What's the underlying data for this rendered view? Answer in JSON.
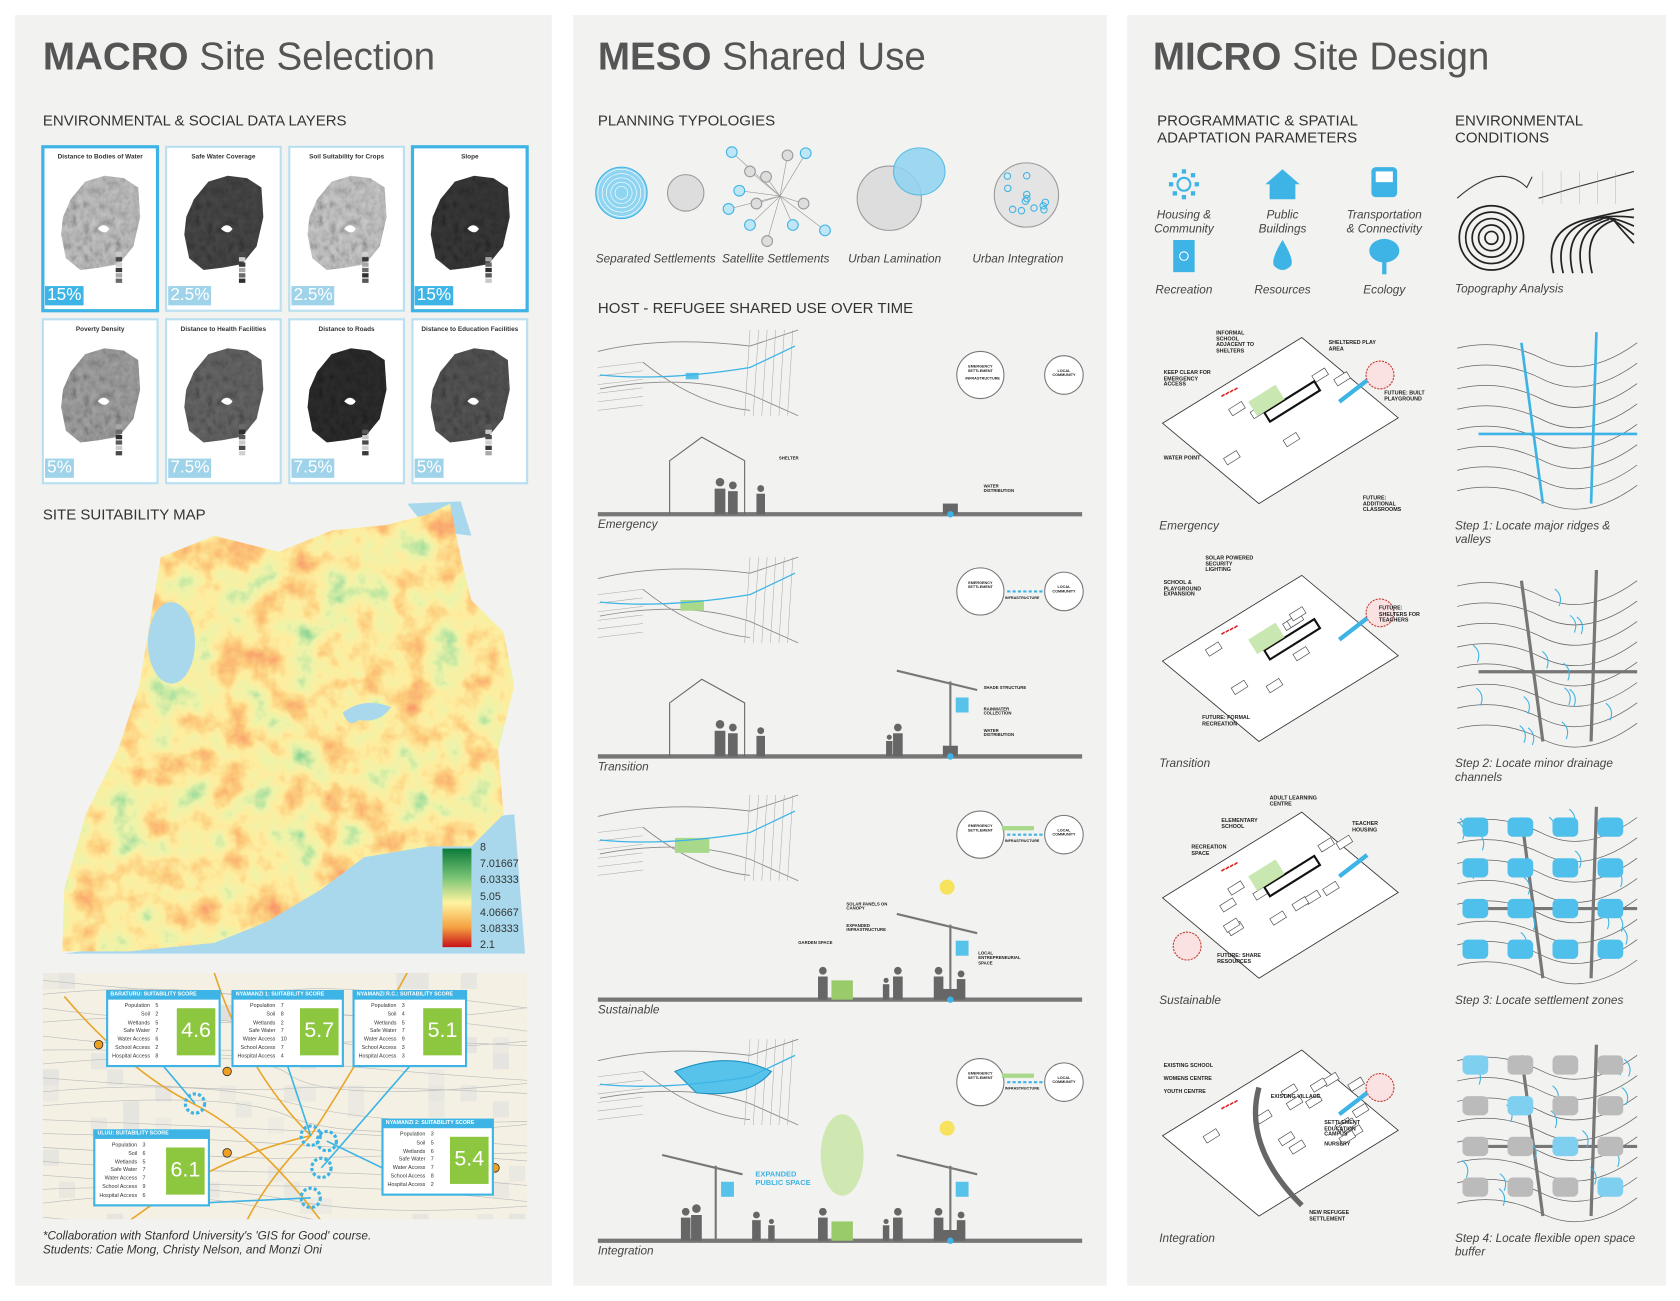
{
  "macro": {
    "title_bold": "MACRO",
    "title_rest": "Site Selection",
    "layers_heading": "ENVIRONMENTAL & SOCIAL DATA LAYERS",
    "layers": [
      {
        "title": "Distance to Bodies of Water",
        "weight": "15%",
        "highlight": true
      },
      {
        "title": "Safe Water Coverage",
        "weight": "2.5%",
        "highlight": false
      },
      {
        "title": "Soil Suitability for Crops",
        "weight": "2.5%",
        "highlight": false
      },
      {
        "title": "Slope",
        "weight": "15%",
        "highlight": true
      },
      {
        "title": "Poverty Density",
        "weight": "5%",
        "highlight": false
      },
      {
        "title": "Distance to Health Facilities",
        "weight": "7.5%",
        "highlight": false
      },
      {
        "title": "Distance to Roads",
        "weight": "7.5%",
        "highlight": false
      },
      {
        "title": "Distance to Education Facilities",
        "weight": "5%",
        "highlight": false
      }
    ],
    "suitability_heading": "SITE SUITABILITY MAP",
    "legend": [
      8,
      7.01667,
      6.03333,
      5.05,
      4.06667,
      3.08333,
      2.1
    ],
    "factors": [
      "Population",
      "Soil",
      "Wetlands",
      "Safe Water",
      "Water Access",
      "School Access",
      "Hospital Access"
    ],
    "sites": [
      {
        "name": "BARATURU: SUITABILITY SCORE",
        "scores": [
          5,
          2,
          5,
          7,
          6,
          2,
          8
        ],
        "score": 4.6
      },
      {
        "name": "NYAMANZI 1: SUITABILITY SCORE",
        "scores": [
          7,
          8,
          2,
          7,
          10,
          7,
          4
        ],
        "score": 5.7
      },
      {
        "name": "NYAMANZI R.C.: SUITABILITY SCORE",
        "scores": [
          3,
          4,
          5,
          7,
          9,
          3,
          3
        ],
        "score": 5.1
      },
      {
        "name": "ULUU: SUITABILITY SCORE",
        "scores": [
          3,
          6,
          5,
          7,
          7,
          9,
          6
        ],
        "score": 6.1
      },
      {
        "name": "NYAMANZI 2: SUITABILITY SCORE",
        "scores": [
          3,
          5,
          6,
          7,
          7,
          8,
          2
        ],
        "score": 5.4
      }
    ],
    "footnote": [
      "*Collaboration with Stanford University's 'GIS for Good' course.",
      "Students: Catie Mong, Christy Nelson, and Monzi Oni"
    ]
  },
  "meso": {
    "title_bold": "MESO",
    "title_rest": "Shared Use",
    "typologies_heading": "PLANNING TYPOLOGIES",
    "typologies": [
      "Separated Settlements",
      "Satellite Settlements",
      "Urban Lamination",
      "Urban Integration"
    ],
    "timeline_heading": "HOST - REFUGEE SHARED USE OVER TIME",
    "phases": [
      {
        "name": "Emergency",
        "circle_labels": [
          "EMERGENCY SETTLEMENT",
          "INFRASTRUCTURE",
          "LOCAL COMMUNITY"
        ],
        "labels": [
          "SHELTER",
          "WATER DISTRIBUTION"
        ]
      },
      {
        "name": "Transition",
        "circle_labels": [
          "EMERGENCY SETTLEMENT",
          "INFRASTRUCTURE",
          "LOCAL COMMUNITY"
        ],
        "labels": [
          "SHADE STRUCTURE",
          "RAINWATER COLLECTION",
          "WATER DISTRIBUTION"
        ]
      },
      {
        "name": "Sustainable",
        "circle_labels": [
          "EMERGENCY SETTLEMENT",
          "INFRASTRUCTURE",
          "LOCAL COMMUNITY"
        ],
        "labels": [
          "SOLAR PANELS ON CANOPY",
          "EXPANDED INFRASTRUCTURE",
          "GARDEN SPACE",
          "LOCAL ENTREPRENEURIAL SPACE"
        ]
      },
      {
        "name": "Integration",
        "circle_labels": [
          "EMERGENCY SETTLEMENT",
          "INFRASTRUCTURE",
          "LOCAL COMMUNITY"
        ],
        "labels": [
          "EXPANDED PUBLIC SPACE"
        ]
      }
    ]
  },
  "micro": {
    "title_bold": "MICRO",
    "title_rest": "Site Design",
    "parameters_heading": "PROGRAMMATIC & SPATIAL ADAPTATION PARAMETERS",
    "conditions_heading": "ENVIRONMENTAL CONDITIONS",
    "parameters": [
      "Housing & Community",
      "Public Buildings",
      "Transportation & Connectivity",
      "Recreation",
      "Resources",
      "Ecology"
    ],
    "topography": "Topography Analysis",
    "phases": [
      {
        "name": "Emergency",
        "step": "Step 1: Locate major ridges & valleys",
        "labels": [
          "INFORMAL SCHOOL ADJACENT TO SHELTERS",
          "SHELTERED PLAY AREA",
          "KEEP CLEAR FOR EMERGENCY ACCESS",
          "FUTURE: BUILT PLAYGROUND",
          "WATER POINT",
          "FUTURE: ADDITIONAL CLASSROOMS"
        ]
      },
      {
        "name": "Transition",
        "step": "Step 2: Locate minor drainage channels",
        "labels": [
          "SOLAR POWERED SECURITY LIGHTING",
          "SCHOOL & PLAYGROUND EXPANSION",
          "FUTURE: SHELTERS FOR TEACHERS",
          "FUTURE: FORMAL RECREATION"
        ]
      },
      {
        "name": "Sustainable",
        "step": "Step 3: Locate settlement zones",
        "labels": [
          "ADULT LEARNING CENTRE",
          "ELEMENTARY SCHOOL",
          "TEACHER HOUSING",
          "RECREATION SPACE",
          "FUTURE: SHARE RESOURCES"
        ]
      },
      {
        "name": "Integration",
        "step": "Step 4: Locate flexible open space buffer",
        "labels": [
          "EXISTING SCHOOL",
          "WOMENS CENTRE",
          "YOUTH CENTRE",
          "EXISTING VILLAGE",
          "SETTLEMENT EDUCATION CAMPUS",
          "NURSERY",
          "NEW REFUGEE SETTLEMENT"
        ]
      }
    ]
  }
}
